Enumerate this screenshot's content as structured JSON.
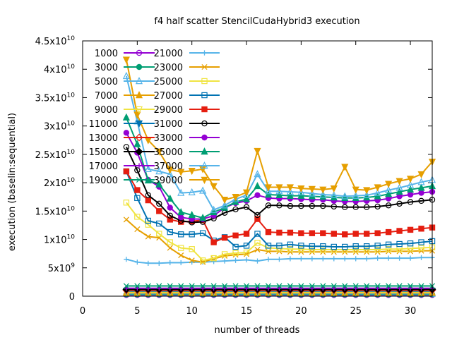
{
  "chart_data": {
    "type": "line",
    "title": "f4 half scatter StencilCudaHybrid3 execution",
    "xlabel": "number of threads",
    "ylabel": "execution (baselin:sequential)",
    "xlim": [
      0,
      32
    ],
    "ylim": [
      0,
      45000000000
    ],
    "x_ticks": [
      0,
      5,
      10,
      15,
      20,
      25,
      30
    ],
    "x_tick_labels": [
      "0",
      "5",
      "10",
      "15",
      "20",
      "25",
      "30"
    ],
    "y_ticks": [
      0,
      5000000000,
      10000000000,
      15000000000,
      20000000000,
      25000000000,
      30000000000,
      35000000000,
      40000000000,
      45000000000
    ],
    "y_tick_labels": [
      {
        "mant": "0",
        "exp": ""
      },
      {
        "mant": "5x10",
        "exp": "9"
      },
      {
        "mant": "1x10",
        "exp": "10"
      },
      {
        "mant": "1.5x10",
        "exp": "10"
      },
      {
        "mant": "2x10",
        "exp": "10"
      },
      {
        "mant": "2.5x10",
        "exp": "10"
      },
      {
        "mant": "3x10",
        "exp": "10"
      },
      {
        "mant": "3.5x10",
        "exp": "10"
      },
      {
        "mant": "4x10",
        "exp": "10"
      },
      {
        "mant": "4.5x10",
        "exp": "10"
      }
    ],
    "grid": false,
    "legend_position": "top-left",
    "x": [
      4,
      5,
      6,
      7,
      8,
      9,
      10,
      11,
      12,
      13,
      14,
      15,
      16,
      17,
      18,
      19,
      20,
      21,
      22,
      23,
      24,
      25,
      26,
      27,
      28,
      29,
      30,
      31,
      32
    ],
    "series": [
      {
        "name": "1000",
        "color": "#9400d3",
        "marker": "circle",
        "values": [
          200000000,
          200000000,
          200000000,
          200000000,
          200000000,
          200000000,
          200000000,
          200000000,
          200000000,
          200000000,
          200000000,
          200000000,
          200000000,
          200000000,
          200000000,
          200000000,
          200000000,
          200000000,
          200000000,
          200000000,
          200000000,
          200000000,
          200000000,
          200000000,
          200000000,
          200000000,
          200000000,
          200000000,
          200000000
        ]
      },
      {
        "name": "3000",
        "color": "#009e73",
        "marker": "circle-filled",
        "values": [
          300000000,
          300000000,
          300000000,
          300000000,
          300000000,
          300000000,
          300000000,
          300000000,
          300000000,
          300000000,
          300000000,
          300000000,
          300000000,
          300000000,
          300000000,
          300000000,
          300000000,
          300000000,
          300000000,
          300000000,
          300000000,
          300000000,
          300000000,
          300000000,
          300000000,
          300000000,
          300000000,
          300000000,
          300000000
        ]
      },
      {
        "name": "5000",
        "color": "#56b4e9",
        "marker": "triangle",
        "values": [
          450000000,
          450000000,
          450000000,
          450000000,
          450000000,
          450000000,
          450000000,
          450000000,
          450000000,
          450000000,
          450000000,
          450000000,
          450000000,
          450000000,
          450000000,
          450000000,
          450000000,
          450000000,
          450000000,
          450000000,
          450000000,
          450000000,
          450000000,
          450000000,
          450000000,
          450000000,
          450000000,
          450000000,
          450000000
        ]
      },
      {
        "name": "7000",
        "color": "#e69f00",
        "marker": "triangle-filled",
        "values": [
          600000000,
          600000000,
          600000000,
          600000000,
          600000000,
          600000000,
          600000000,
          600000000,
          600000000,
          600000000,
          600000000,
          600000000,
          600000000,
          600000000,
          600000000,
          600000000,
          600000000,
          600000000,
          600000000,
          600000000,
          600000000,
          600000000,
          600000000,
          600000000,
          600000000,
          600000000,
          600000000,
          600000000,
          600000000
        ]
      },
      {
        "name": "9000",
        "color": "#f0e442",
        "marker": "triangle-down",
        "values": [
          750000000,
          750000000,
          750000000,
          750000000,
          750000000,
          750000000,
          750000000,
          750000000,
          750000000,
          750000000,
          750000000,
          750000000,
          750000000,
          750000000,
          750000000,
          750000000,
          750000000,
          750000000,
          750000000,
          750000000,
          750000000,
          750000000,
          750000000,
          750000000,
          750000000,
          750000000,
          750000000,
          750000000,
          750000000
        ]
      },
      {
        "name": "11000",
        "color": "#0072b2",
        "marker": "triangle-down-filled",
        "values": [
          900000000,
          900000000,
          900000000,
          900000000,
          900000000,
          900000000,
          900000000,
          900000000,
          900000000,
          900000000,
          900000000,
          900000000,
          900000000,
          900000000,
          900000000,
          900000000,
          900000000,
          900000000,
          900000000,
          900000000,
          900000000,
          900000000,
          900000000,
          900000000,
          900000000,
          900000000,
          900000000,
          900000000,
          900000000
        ]
      },
      {
        "name": "13000",
        "color": "#e51e10",
        "marker": "diamond",
        "values": [
          1050000000,
          1050000000,
          1050000000,
          1050000000,
          1050000000,
          1050000000,
          1050000000,
          1050000000,
          1050000000,
          1050000000,
          1050000000,
          1050000000,
          1050000000,
          1050000000,
          1050000000,
          1050000000,
          1050000000,
          1050000000,
          1050000000,
          1050000000,
          1050000000,
          1050000000,
          1050000000,
          1050000000,
          1050000000,
          1050000000,
          1050000000,
          1050000000,
          1050000000
        ]
      },
      {
        "name": "15000",
        "color": "#000000",
        "marker": "diamond-filled",
        "values": [
          1200000000,
          1200000000,
          1200000000,
          1200000000,
          1200000000,
          1200000000,
          1200000000,
          1200000000,
          1200000000,
          1200000000,
          1200000000,
          1200000000,
          1200000000,
          1200000000,
          1200000000,
          1200000000,
          1200000000,
          1200000000,
          1200000000,
          1200000000,
          1200000000,
          1200000000,
          1200000000,
          1200000000,
          1200000000,
          1200000000,
          1200000000,
          1200000000,
          1200000000
        ]
      },
      {
        "name": "17000",
        "color": "#9400d3",
        "marker": "plus",
        "values": [
          1400000000,
          1400000000,
          1400000000,
          1400000000,
          1400000000,
          1400000000,
          1400000000,
          1400000000,
          1400000000,
          1400000000,
          1400000000,
          1400000000,
          1400000000,
          1400000000,
          1400000000,
          1400000000,
          1400000000,
          1400000000,
          1400000000,
          1400000000,
          1400000000,
          1400000000,
          1400000000,
          1400000000,
          1400000000,
          1400000000,
          1400000000,
          1400000000,
          1400000000
        ]
      },
      {
        "name": "19000",
        "color": "#009e73",
        "marker": "cross",
        "values": [
          1800000000,
          1800000000,
          1800000000,
          1800000000,
          1800000000,
          1800000000,
          1800000000,
          1800000000,
          1800000000,
          1800000000,
          1800000000,
          1800000000,
          1800000000,
          1800000000,
          1800000000,
          1800000000,
          1800000000,
          1800000000,
          1800000000,
          1800000000,
          1800000000,
          1800000000,
          1800000000,
          1800000000,
          1800000000,
          1800000000,
          1800000000,
          1800000000,
          1800000000
        ]
      },
      {
        "name": "21000",
        "color": "#56b4e9",
        "marker": "plus",
        "values": [
          6500000000,
          6000000000,
          5800000000,
          5800000000,
          5900000000,
          5900000000,
          6000000000,
          6000000000,
          6100000000,
          6200000000,
          6300000000,
          6400000000,
          6200000000,
          6500000000,
          6500000000,
          6600000000,
          6600000000,
          6600000000,
          6600000000,
          6600000000,
          6600000000,
          6600000000,
          6600000000,
          6700000000,
          6700000000,
          6700000000,
          6700000000,
          6800000000,
          6800000000
        ]
      },
      {
        "name": "23000",
        "color": "#e69f00",
        "marker": "cross",
        "values": [
          13500000000,
          11800000000,
          10500000000,
          10300000000,
          8500000000,
          7200000000,
          6300000000,
          6000000000,
          6600000000,
          7100000000,
          7300000000,
          7400000000,
          8200000000,
          7900000000,
          7900000000,
          7800000000,
          7800000000,
          7800000000,
          7800000000,
          7800000000,
          7800000000,
          7800000000,
          7800000000,
          7800000000,
          7900000000,
          7900000000,
          7900000000,
          8000000000,
          8000000000
        ]
      },
      {
        "name": "25000",
        "color": "#f0e442",
        "marker": "square",
        "values": [
          16500000000,
          14000000000,
          12600000000,
          11000000000,
          9500000000,
          8500000000,
          8300000000,
          6300000000,
          6700000000,
          7400000000,
          7600000000,
          7700000000,
          9400000000,
          8500000000,
          8400000000,
          8300000000,
          8300000000,
          8200000000,
          8200000000,
          8200000000,
          8200000000,
          8200000000,
          8200000000,
          8200000000,
          8300000000,
          8300000000,
          8400000000,
          8500000000,
          8600000000
        ]
      },
      {
        "name": "27000",
        "color": "#0072b2",
        "marker": "square",
        "values": [
          22000000000,
          17300000000,
          13300000000,
          12800000000,
          11300000000,
          10900000000,
          10900000000,
          11100000000,
          9800000000,
          10400000000,
          8700000000,
          8900000000,
          11000000000,
          8900000000,
          8900000000,
          9100000000,
          8900000000,
          8800000000,
          8800000000,
          8700000000,
          8700000000,
          8800000000,
          8800000000,
          8900000000,
          9100000000,
          9200000000,
          9300000000,
          9500000000,
          9700000000
        ]
      },
      {
        "name": "29000",
        "color": "#e51e10",
        "marker": "square-filled",
        "values": [
          22000000000,
          18700000000,
          16900000000,
          15000000000,
          13500000000,
          13100000000,
          13200000000,
          13400000000,
          9500000000,
          10300000000,
          10700000000,
          11000000000,
          13600000000,
          11300000000,
          11200000000,
          11200000000,
          11100000000,
          11100000000,
          11100000000,
          11000000000,
          10900000000,
          11000000000,
          11000000000,
          11100000000,
          11300000000,
          11500000000,
          11700000000,
          11900000000,
          12100000000
        ]
      },
      {
        "name": "31000",
        "color": "#000000",
        "marker": "circle",
        "values": [
          26300000000,
          22200000000,
          17800000000,
          16300000000,
          14200000000,
          13300000000,
          13000000000,
          13100000000,
          13700000000,
          14700000000,
          15300000000,
          15700000000,
          14300000000,
          16000000000,
          16000000000,
          15900000000,
          15900000000,
          15900000000,
          15900000000,
          15800000000,
          15700000000,
          15700000000,
          15700000000,
          15800000000,
          16000000000,
          16300000000,
          16600000000,
          16800000000,
          17000000000
        ]
      },
      {
        "name": "33000",
        "color": "#9400d3",
        "marker": "circle-filled",
        "values": [
          28800000000,
          25300000000,
          20500000000,
          19300000000,
          15600000000,
          13900000000,
          13600000000,
          13600000000,
          14200000000,
          15600000000,
          16400000000,
          16800000000,
          17800000000,
          17300000000,
          17200000000,
          17200000000,
          17100000000,
          17000000000,
          17000000000,
          16800000000,
          16700000000,
          16700000000,
          16800000000,
          16900000000,
          17200000000,
          17600000000,
          17900000000,
          18200000000,
          18400000000
        ]
      },
      {
        "name": "35000",
        "color": "#009e73",
        "marker": "triangle-filled",
        "values": [
          31500000000,
          26800000000,
          20400000000,
          19700000000,
          17200000000,
          14800000000,
          14300000000,
          13800000000,
          14800000000,
          15600000000,
          16600000000,
          17100000000,
          19400000000,
          17900000000,
          17800000000,
          17700000000,
          17700000000,
          17600000000,
          17500000000,
          17400000000,
          17300000000,
          17300000000,
          17400000000,
          17600000000,
          18000000000,
          18400000000,
          18800000000,
          19100000000,
          19400000000
        ]
      },
      {
        "name": "37000",
        "color": "#56b4e9",
        "marker": "triangle",
        "values": [
          38800000000,
          30800000000,
          22400000000,
          22000000000,
          21500000000,
          18200000000,
          18300000000,
          18600000000,
          15200000000,
          16000000000,
          17100000000,
          17800000000,
          21500000000,
          18500000000,
          18500000000,
          18400000000,
          18300000000,
          18100000000,
          17900000000,
          17800000000,
          17600000000,
          17700000000,
          17800000000,
          18200000000,
          18700000000,
          19100000000,
          19600000000,
          20100000000,
          20500000000
        ]
      },
      {
        "name": "39000",
        "color": "#e69f00",
        "marker": "triangle-down-filled",
        "values": [
          41700000000,
          32000000000,
          27500000000,
          25500000000,
          22300000000,
          21900000000,
          22100000000,
          22400000000,
          19400000000,
          17000000000,
          17500000000,
          18300000000,
          25600000000,
          19200000000,
          19200000000,
          19200000000,
          19000000000,
          18900000000,
          18800000000,
          19000000000,
          22800000000,
          18800000000,
          18700000000,
          19200000000,
          19800000000,
          20300000000,
          20700000000,
          21500000000,
          23700000000
        ]
      }
    ]
  }
}
